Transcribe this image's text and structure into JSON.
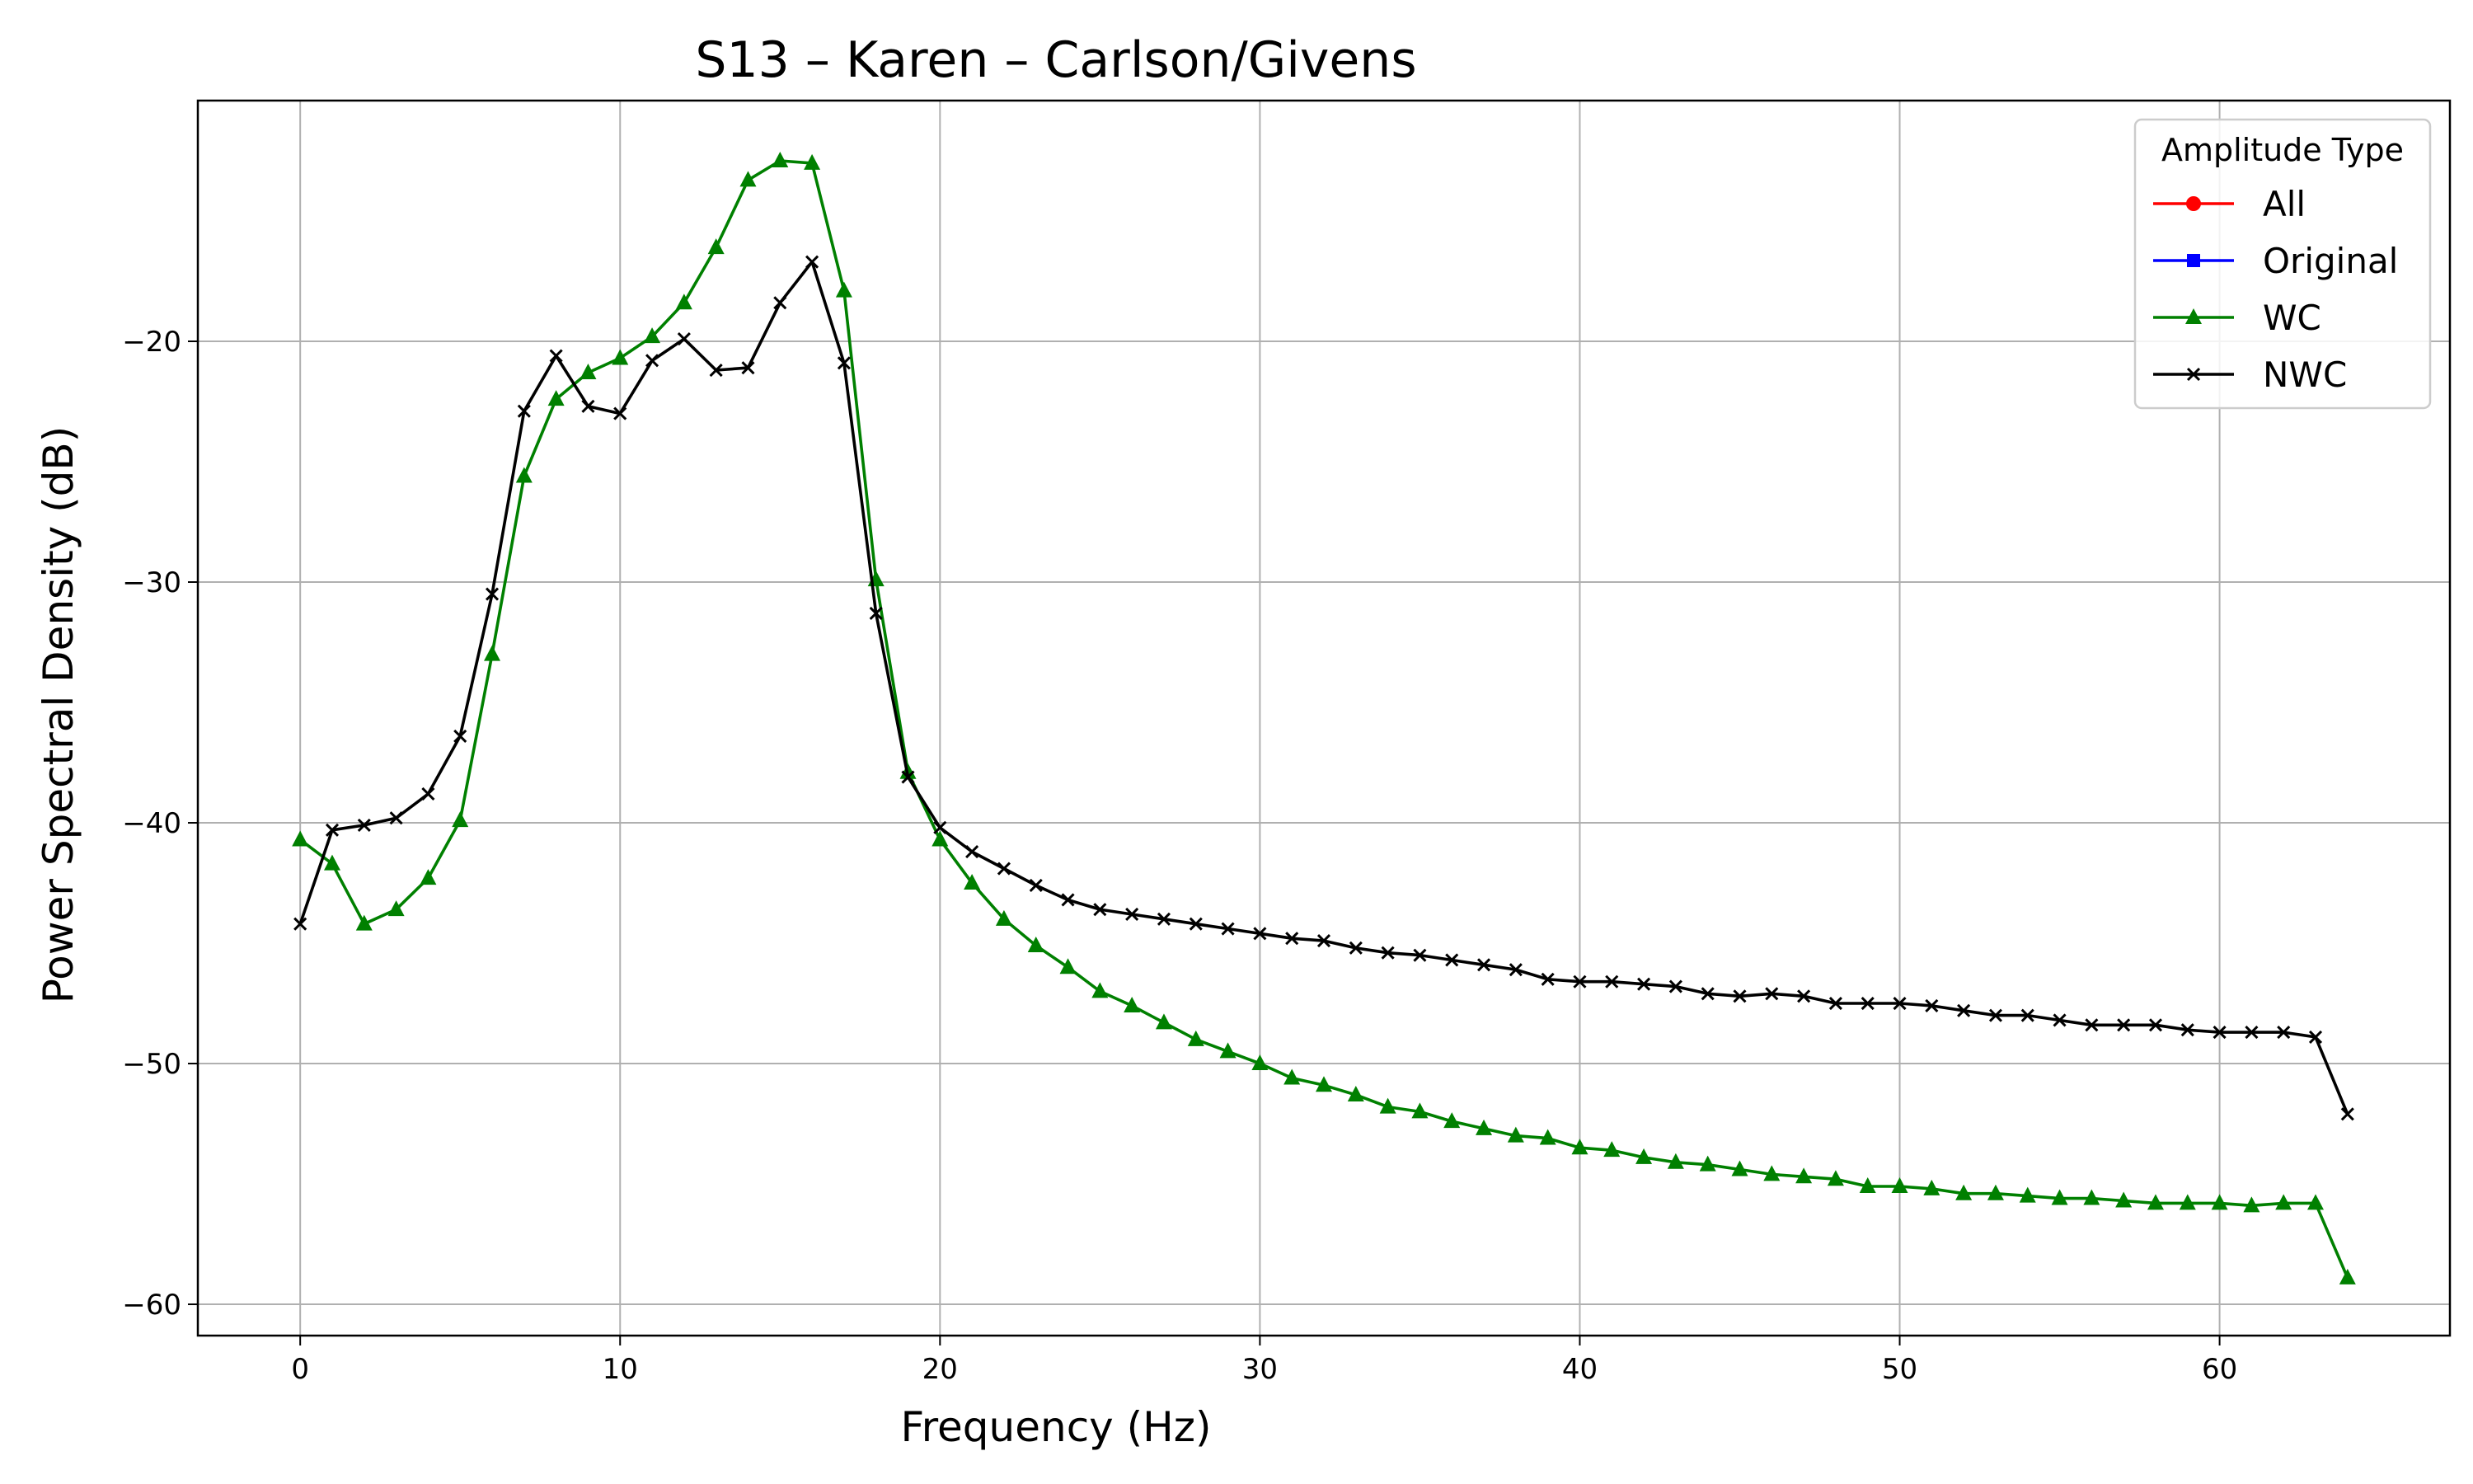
{
  "chart_data": {
    "type": "line",
    "title": "S13 – Karen – Carlson/Givens",
    "xlabel": "Frequency (Hz)",
    "ylabel": "Power Spectral Density (dB)",
    "xlim": [
      -3.2,
      67.2
    ],
    "ylim": [
      -61.3,
      -10.0
    ],
    "xticks": [
      0,
      10,
      20,
      30,
      40,
      50,
      60
    ],
    "yticks": [
      -60,
      -50,
      -40,
      -30,
      -20
    ],
    "grid": true,
    "legend": {
      "title": "Amplitude Type",
      "position": "top-right"
    },
    "series": [
      {
        "name": "All",
        "color": "#ff0000",
        "marker": "circle",
        "x": [],
        "values": []
      },
      {
        "name": "Original",
        "color": "#0000ff",
        "marker": "square",
        "x": [],
        "values": []
      },
      {
        "name": "WC",
        "color": "#008000",
        "marker": "triangle",
        "x": [
          0,
          1,
          2,
          3,
          4,
          5,
          6,
          7,
          8,
          9,
          10,
          11,
          12,
          13,
          14,
          15,
          16,
          17,
          18,
          19,
          20,
          21,
          22,
          23,
          24,
          25,
          26,
          27,
          28,
          29,
          30,
          31,
          32,
          33,
          34,
          35,
          36,
          37,
          38,
          39,
          40,
          41,
          42,
          43,
          44,
          45,
          46,
          47,
          48,
          49,
          50,
          51,
          52,
          53,
          54,
          55,
          56,
          57,
          58,
          59,
          60,
          61,
          62,
          63,
          64
        ],
        "values": [
          -40.7,
          -41.7,
          -44.2,
          -43.6,
          -42.3,
          -39.9,
          -33.0,
          -25.6,
          -22.4,
          -21.3,
          -20.7,
          -19.8,
          -18.4,
          -16.1,
          -13.3,
          -12.5,
          -12.6,
          -17.9,
          -29.9,
          -37.9,
          -40.7,
          -42.5,
          -44.0,
          -45.1,
          -46.0,
          -47.0,
          -47.6,
          -48.3,
          -49.0,
          -49.5,
          -50.0,
          -50.6,
          -50.9,
          -51.3,
          -51.8,
          -52.0,
          -52.4,
          -52.7,
          -53.0,
          -53.1,
          -53.5,
          -53.6,
          -53.9,
          -54.1,
          -54.2,
          -54.4,
          -54.6,
          -54.7,
          -54.8,
          -55.1,
          -55.1,
          -55.2,
          -55.4,
          -55.4,
          -55.5,
          -55.6,
          -55.6,
          -55.7,
          -55.8,
          -55.8,
          -55.8,
          -55.9,
          -55.8,
          -55.8,
          -58.9
        ]
      },
      {
        "name": "NWC",
        "color": "#000000",
        "marker": "x",
        "x": [
          0,
          1,
          2,
          3,
          4,
          5,
          6,
          7,
          8,
          9,
          10,
          11,
          12,
          13,
          14,
          15,
          16,
          17,
          18,
          19,
          20,
          21,
          22,
          23,
          24,
          25,
          26,
          27,
          28,
          29,
          30,
          31,
          32,
          33,
          34,
          35,
          36,
          37,
          38,
          39,
          40,
          41,
          42,
          43,
          44,
          45,
          46,
          47,
          48,
          49,
          50,
          51,
          52,
          53,
          54,
          55,
          56,
          57,
          58,
          59,
          60,
          61,
          62,
          63,
          64
        ],
        "values": [
          -44.2,
          -40.3,
          -40.1,
          -39.8,
          -38.8,
          -36.4,
          -30.5,
          -22.9,
          -20.6,
          -22.7,
          -23.0,
          -20.8,
          -19.9,
          -21.2,
          -21.1,
          -18.4,
          -16.7,
          -20.9,
          -31.3,
          -38.1,
          -40.2,
          -41.2,
          -41.9,
          -42.6,
          -43.2,
          -43.6,
          -43.8,
          -44.0,
          -44.2,
          -44.4,
          -44.6,
          -44.8,
          -44.9,
          -45.2,
          -45.4,
          -45.5,
          -45.7,
          -45.9,
          -46.1,
          -46.5,
          -46.6,
          -46.6,
          -46.7,
          -46.8,
          -47.1,
          -47.2,
          -47.1,
          -47.2,
          -47.5,
          -47.5,
          -47.5,
          -47.6,
          -47.8,
          -48.0,
          -48.0,
          -48.2,
          -48.4,
          -48.4,
          -48.4,
          -48.6,
          -48.7,
          -48.7,
          -48.7,
          -48.9,
          -52.1
        ]
      }
    ]
  }
}
